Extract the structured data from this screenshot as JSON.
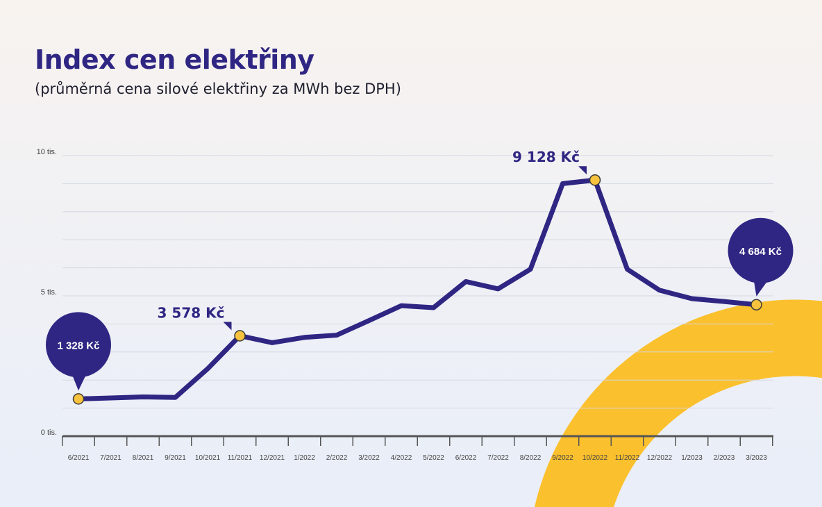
{
  "header": {
    "title": "Index cen elektřiny",
    "subtitle": "(průměrná cena silové elektřiny za MWh bez DPH)"
  },
  "colors": {
    "line": "#2f2683",
    "marker": "#f7c23d",
    "bubble": "#2f2683",
    "accent_arc": "#fbc02d",
    "grid": "#d5d8e2",
    "axis": "#555555"
  },
  "chart_data": {
    "type": "line",
    "title": "Index cen elektřiny",
    "subtitle": "(průměrná cena silové elektřiny za MWh bez DPH)",
    "xlabel": "",
    "ylabel": "",
    "ylim": [
      0,
      10000
    ],
    "grid": true,
    "y_ticks": [
      {
        "value": 0,
        "label": "0 tis."
      },
      {
        "value": 5000,
        "label": "5 tis."
      },
      {
        "value": 10000,
        "label": "10 tis."
      }
    ],
    "categories": [
      "6/2021",
      "7/2021",
      "8/2021",
      "9/2021",
      "10/2021",
      "11/2021",
      "12/2021",
      "1/2022",
      "2/2022",
      "3/2022",
      "4/2022",
      "5/2022",
      "6/2022",
      "7/2022",
      "8/2022",
      "9/2022",
      "10/2022",
      "11/2022",
      "12/2022",
      "1/2023",
      "2/2023",
      "3/2023"
    ],
    "series": [
      {
        "values": [
          1328,
          1360,
          1400,
          1380,
          2400,
          3578,
          3330,
          3520,
          3600,
          4120,
          4650,
          4580,
          5510,
          5250,
          5950,
          9000,
          9128,
          5950,
          5200,
          4900,
          4800,
          4684
        ]
      }
    ],
    "annotations": [
      {
        "index": 0,
        "label": "1 328 Kč",
        "style": "bubble"
      },
      {
        "index": 5,
        "label": "3 578 Kč",
        "style": "callout"
      },
      {
        "index": 16,
        "label": "9 128 Kč",
        "style": "callout"
      },
      {
        "index": 21,
        "label": "4 684 Kč",
        "style": "bubble"
      }
    ]
  }
}
